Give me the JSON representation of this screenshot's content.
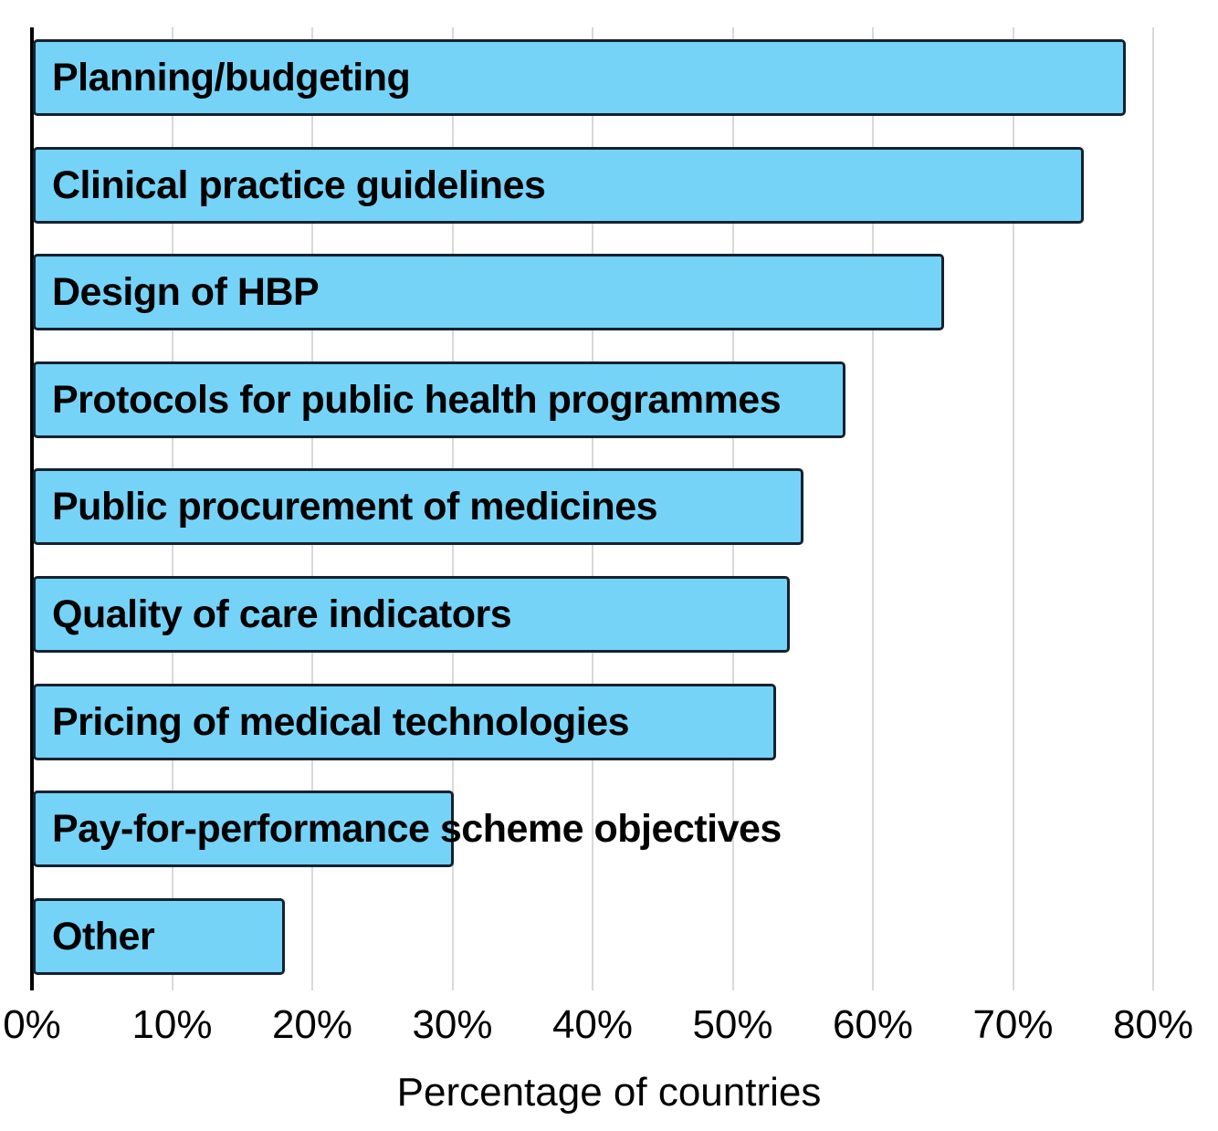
{
  "chart_data": {
    "type": "bar",
    "orientation": "horizontal",
    "title": "",
    "categories": [
      "Planning/budgeting",
      "Clinical practice guidelines",
      "Design of HBP",
      "Protocols for public health programmes",
      "Public procurement of medicines",
      "Quality of care indicators",
      "Pricing of medical technologies",
      "Pay-for-performance scheme objectives",
      "Other"
    ],
    "values": [
      78,
      75,
      65,
      58,
      55,
      54,
      53,
      30,
      18
    ],
    "unit": "%",
    "xlabel": "Percentage of countries",
    "xlim": [
      0,
      80
    ],
    "xtick_step": 10,
    "xtick_labels": [
      "0%",
      "10%",
      "20%",
      "30%",
      "40%",
      "50%",
      "60%",
      "70%",
      "80%"
    ],
    "grid": "vertical-only",
    "legend": "none",
    "bar_labels_position": "inside-left",
    "colors": {
      "bar_fill": "#76D3F8",
      "bar_border": "#15222E",
      "gridline": "#D9D9D9",
      "axis_line": "#000000",
      "text": "#000000"
    }
  }
}
